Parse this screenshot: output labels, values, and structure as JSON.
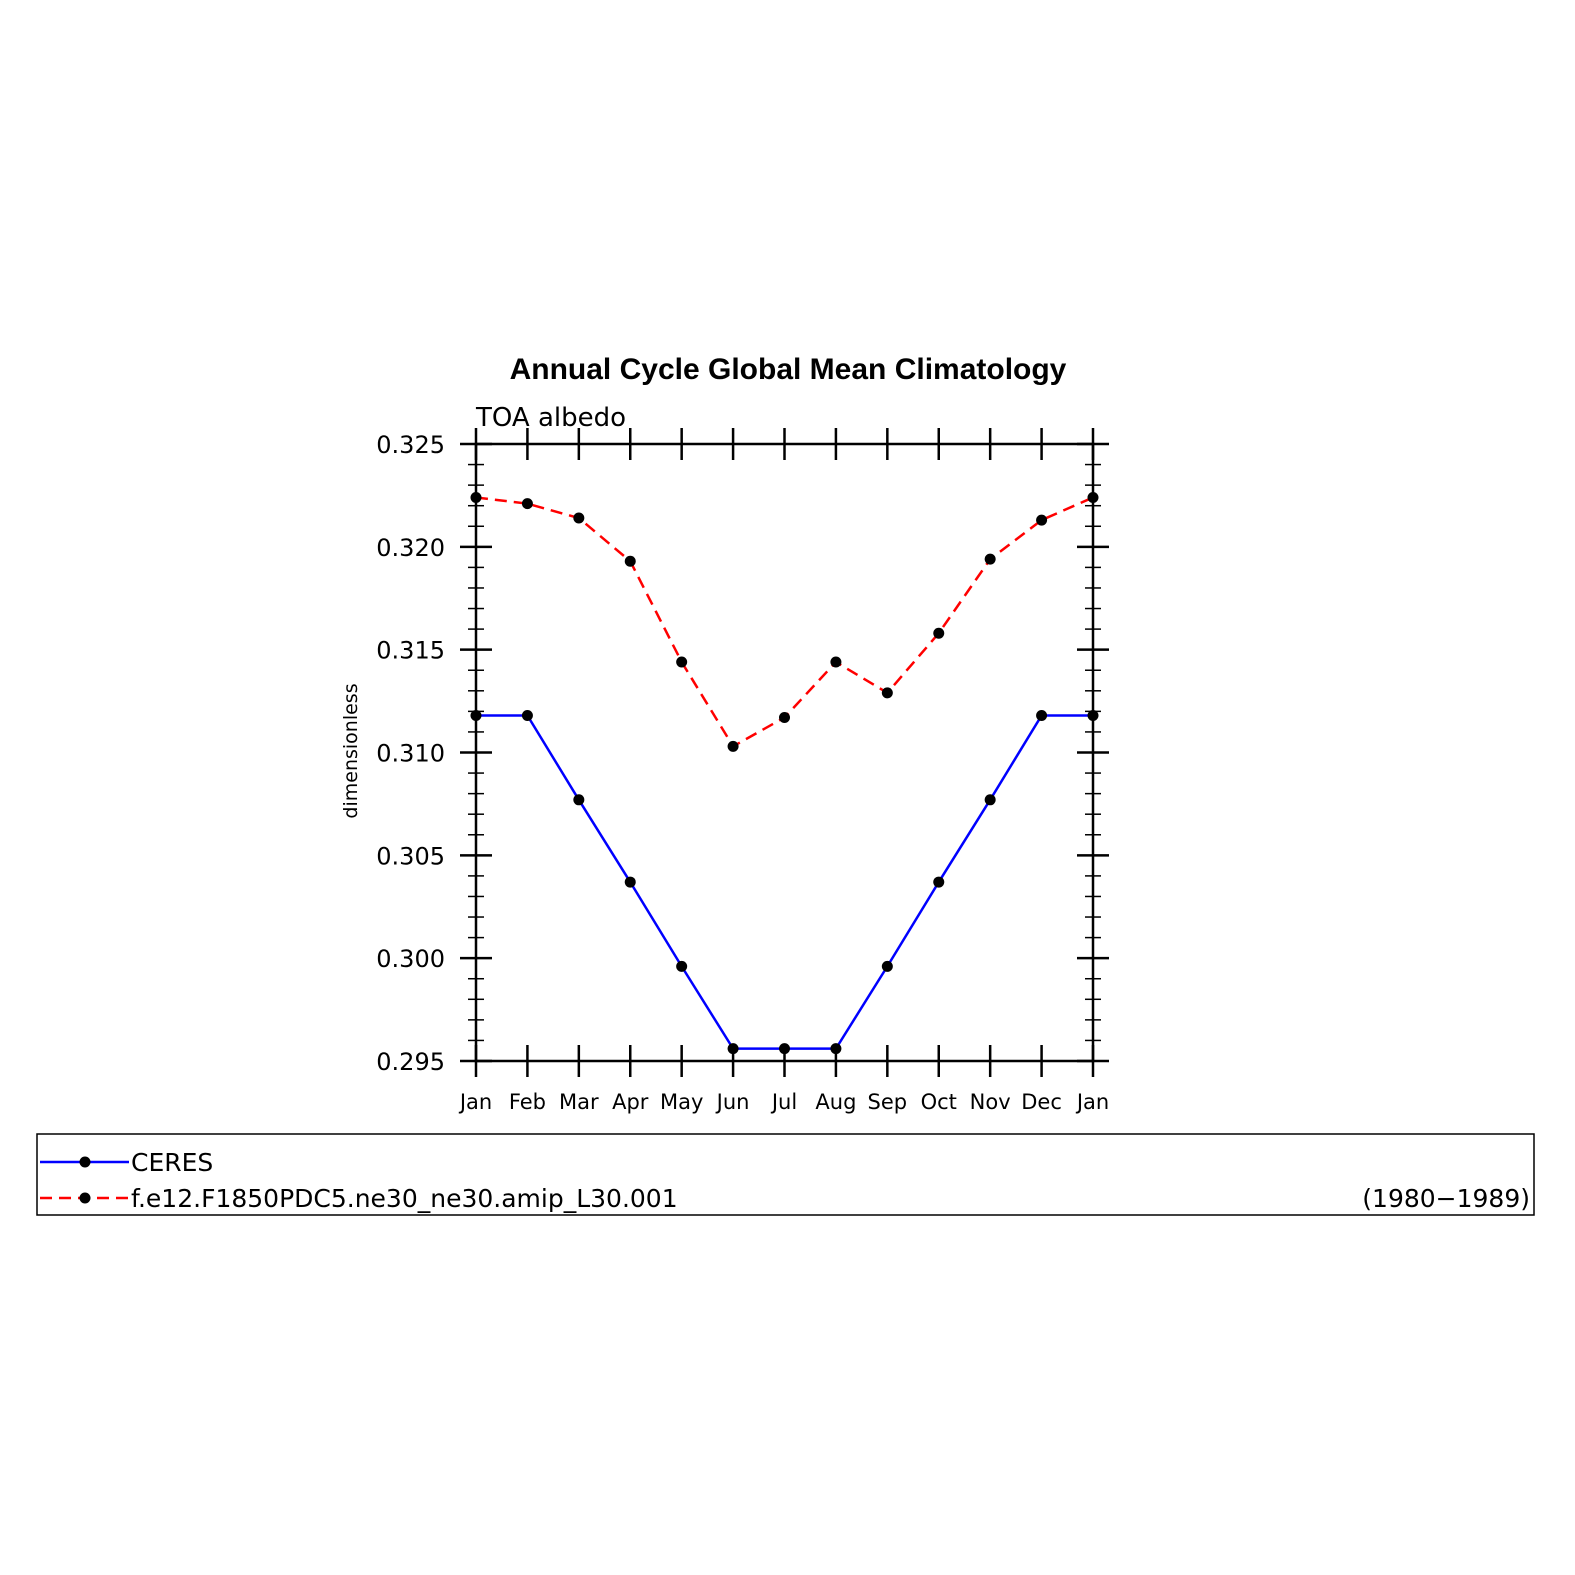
{
  "chart_data": {
    "type": "line",
    "title": "Annual Cycle Global Mean Climatology",
    "subtitle": "TOA albedo",
    "xlabel": "",
    "ylabel": "dimensionless",
    "categories": [
      "Jan",
      "Feb",
      "Mar",
      "Apr",
      "May",
      "Jun",
      "Jul",
      "Aug",
      "Sep",
      "Oct",
      "Nov",
      "Dec",
      "Jan"
    ],
    "ylim": [
      0.295,
      0.325
    ],
    "yticks": [
      "0.295",
      "0.300",
      "0.305",
      "0.310",
      "0.315",
      "0.320",
      "0.325"
    ],
    "grid": false,
    "legend_position": "bottom",
    "series": [
      {
        "name": "CERES",
        "color": "#0000ff",
        "dash": "solid",
        "values": [
          0.3118,
          0.3118,
          0.3077,
          0.3037,
          0.2996,
          0.2956,
          0.2956,
          0.2956,
          0.2996,
          0.3037,
          0.3077,
          0.3118,
          0.3118
        ]
      },
      {
        "name": "f.e12.F1850PDC5.ne30_ne30.amip_L30.001",
        "color": "#ff0000",
        "dash": "dashed",
        "years": "(1980−1989)",
        "values": [
          0.3224,
          0.3221,
          0.3214,
          0.3193,
          0.3144,
          0.3103,
          0.3117,
          0.3144,
          0.3129,
          0.3158,
          0.3194,
          0.3213,
          0.3224
        ]
      }
    ]
  }
}
